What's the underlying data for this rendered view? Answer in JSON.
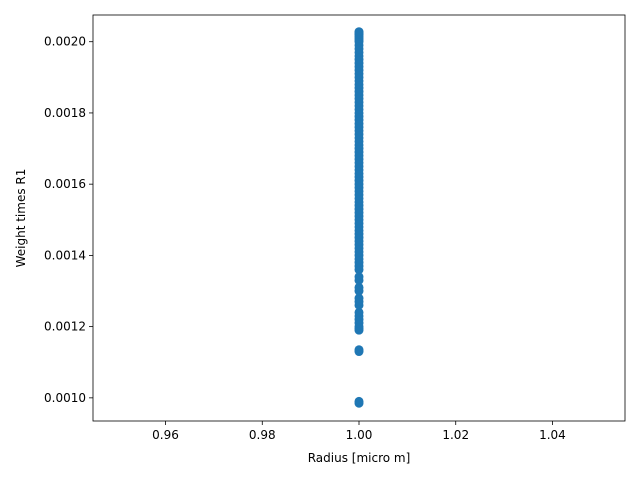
{
  "chart_data": {
    "type": "scatter",
    "title": "",
    "xlabel": "Radius [micro m]",
    "ylabel": "Weight times  R1",
    "xlim": [
      0.945,
      1.055
    ],
    "ylim": [
      0.000935,
      0.002075
    ],
    "grid": false,
    "legend": "none",
    "marker_color": "#1f77b4",
    "x_ticks": [
      {
        "value": 0.96,
        "label": "0.96"
      },
      {
        "value": 0.98,
        "label": "0.98"
      },
      {
        "value": 1.0,
        "label": "1.00"
      },
      {
        "value": 1.02,
        "label": "1.02"
      },
      {
        "value": 1.04,
        "label": "1.04"
      }
    ],
    "y_ticks": [
      {
        "value": 0.001,
        "label": "0.0010"
      },
      {
        "value": 0.0012,
        "label": "0.0012"
      },
      {
        "value": 0.0014,
        "label": "0.0014"
      },
      {
        "value": 0.0016,
        "label": "0.0016"
      },
      {
        "value": 0.0018,
        "label": "0.0018"
      },
      {
        "value": 0.002,
        "label": "0.0020"
      }
    ],
    "series": [
      {
        "x": [
          1.0,
          1.0,
          1.0,
          1.0,
          1.0,
          1.0,
          1.0,
          1.0,
          1.0,
          1.0,
          1.0,
          1.0,
          1.0,
          1.0,
          1.0,
          1.0,
          1.0,
          1.0,
          1.0,
          1.0,
          1.0,
          1.0,
          1.0,
          1.0,
          1.0,
          1.0,
          1.0,
          1.0,
          1.0,
          1.0,
          1.0,
          1.0,
          1.0,
          1.0,
          1.0,
          1.0,
          1.0,
          1.0,
          1.0,
          1.0,
          1.0,
          1.0,
          1.0,
          1.0,
          1.0,
          1.0,
          1.0,
          1.0,
          1.0,
          1.0,
          1.0,
          1.0,
          1.0,
          1.0,
          1.0,
          1.0,
          1.0,
          1.0,
          1.0,
          1.0,
          1.0,
          1.0,
          1.0,
          1.0,
          1.0,
          1.0,
          1.0,
          1.0,
          1.0,
          1.0,
          1.0,
          1.0,
          1.0,
          1.0,
          1.0,
          1.0,
          1.0,
          1.0,
          1.0,
          1.0,
          1.0,
          1.0,
          1.0,
          1.0,
          1.0,
          1.0,
          1.0,
          1.0,
          1.0,
          1.0
        ],
        "y": [
          0.000985,
          0.00099,
          0.00113,
          0.001135,
          0.00119,
          0.001195,
          0.0012,
          0.00121,
          0.00122,
          0.00123,
          0.00124,
          0.00126,
          0.00127,
          0.00128,
          0.0013,
          0.00131,
          0.00133,
          0.00134,
          0.00136,
          0.00137,
          0.00138,
          0.00139,
          0.0014,
          0.00141,
          0.00142,
          0.00143,
          0.00144,
          0.00145,
          0.00146,
          0.00147,
          0.00148,
          0.00149,
          0.0015,
          0.00151,
          0.00152,
          0.00153,
          0.00154,
          0.00155,
          0.00156,
          0.00157,
          0.00158,
          0.00159,
          0.0016,
          0.00161,
          0.00162,
          0.00163,
          0.00164,
          0.00165,
          0.00166,
          0.00167,
          0.00168,
          0.00169,
          0.0017,
          0.00171,
          0.00172,
          0.00173,
          0.00174,
          0.00175,
          0.00176,
          0.00177,
          0.00178,
          0.00179,
          0.0018,
          0.00181,
          0.00182,
          0.00183,
          0.00184,
          0.00185,
          0.00186,
          0.00187,
          0.00188,
          0.00189,
          0.0019,
          0.00191,
          0.00192,
          0.00193,
          0.00194,
          0.00195,
          0.00196,
          0.00197,
          0.00198,
          0.00199,
          0.002,
          0.002005,
          0.00201,
          0.002015,
          0.00202,
          0.002022,
          0.002025,
          0.002028
        ]
      }
    ]
  }
}
